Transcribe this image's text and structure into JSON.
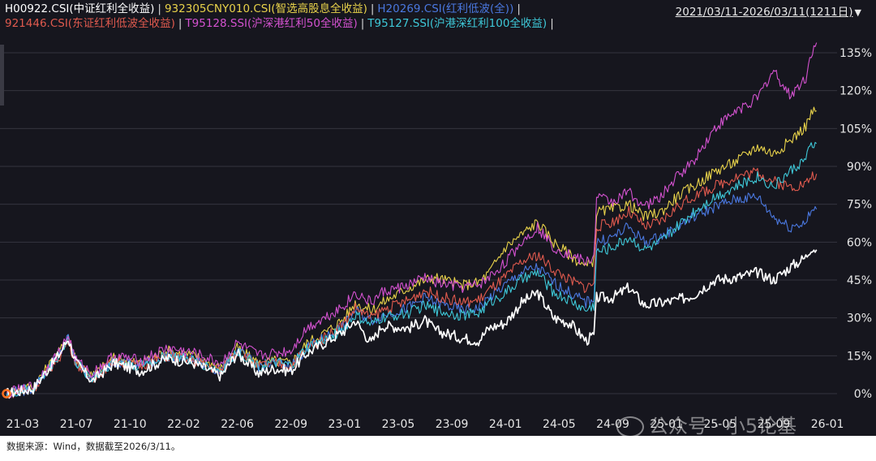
{
  "legend": [
    [
      {
        "label": "H00922.CSI(中证红利全收益)",
        "color": "#ffffff"
      },
      {
        "label": "932305CNY010.CSI(智选高股息全收益)",
        "color": "#e8d24a"
      },
      {
        "label": "H20269.CSI(红利低波(全))",
        "color": "#4a78e0"
      }
    ],
    [
      {
        "label": "921446.CSI(东证红利低波全收益)",
        "color": "#e05a4e"
      },
      {
        "label": "T95128.SSI(沪深港红利50全收益)",
        "color": "#d452d0"
      },
      {
        "label": "T95127.SSI(沪港深红利100全收益)",
        "color": "#3ec8d8"
      }
    ]
  ],
  "legend_separator": "|",
  "date_range": "2021/03/11-2026/03/11(1211日)",
  "watermark": "公众号 · 小5论基",
  "source_note": "数据来源：Wind，数据截至2026/3/11。",
  "chart_data": {
    "type": "line",
    "x_tick_labels": [
      "21-03",
      "21-07",
      "21-10",
      "22-02",
      "22-06",
      "22-09",
      "23-01",
      "23-05",
      "23-09",
      "24-01",
      "24-05",
      "24-09",
      "25-01",
      "25-05",
      "25-09",
      "26-01"
    ],
    "y_tick_labels": [
      "0%",
      "15%",
      "30%",
      "45%",
      "60%",
      "75%",
      "90%",
      "105%",
      "120%",
      "135%"
    ],
    "y_ticks": [
      0,
      15,
      30,
      45,
      60,
      75,
      90,
      105,
      120,
      135
    ],
    "ylim": [
      -4,
      142
    ],
    "xlim": [
      0,
      15.15
    ],
    "grid": true,
    "series": [
      {
        "name": "H00922.CSI(中证红利全收益)",
        "color": "#ffffff",
        "width": 1.7,
        "points": [
          [
            0,
            0
          ],
          [
            0.5,
            2
          ],
          [
            1,
            16
          ],
          [
            1.15,
            22
          ],
          [
            1.3,
            12
          ],
          [
            1.6,
            5
          ],
          [
            2,
            12
          ],
          [
            2.5,
            9
          ],
          [
            3,
            14
          ],
          [
            3.5,
            12
          ],
          [
            4,
            7
          ],
          [
            4.3,
            16
          ],
          [
            4.7,
            8
          ],
          [
            5,
            10
          ],
          [
            5.3,
            9
          ],
          [
            5.6,
            16
          ],
          [
            6,
            21
          ],
          [
            6.3,
            25
          ],
          [
            6.5,
            29
          ],
          [
            6.8,
            20
          ],
          [
            7,
            27
          ],
          [
            7.5,
            26
          ],
          [
            7.8,
            29
          ],
          [
            8,
            25
          ],
          [
            8.5,
            22
          ],
          [
            8.8,
            21
          ],
          [
            9,
            26
          ],
          [
            9.3,
            28
          ],
          [
            9.6,
            36
          ],
          [
            9.9,
            40
          ],
          [
            10.2,
            30
          ],
          [
            10.5,
            28
          ],
          [
            10.8,
            21
          ],
          [
            10.95,
            23
          ],
          [
            11,
            38
          ],
          [
            11.3,
            38
          ],
          [
            11.6,
            42
          ],
          [
            11.9,
            35
          ],
          [
            12.2,
            36
          ],
          [
            12.5,
            37
          ],
          [
            12.8,
            39
          ],
          [
            13.2,
            45
          ],
          [
            13.6,
            46
          ],
          [
            14,
            48
          ],
          [
            14.3,
            45
          ],
          [
            14.6,
            50
          ],
          [
            14.9,
            54
          ],
          [
            15,
            58
          ],
          [
            15.1,
            57
          ]
        ]
      },
      {
        "name": "932305CNY010.CSI(智选高股息全收益)",
        "color": "#e8d24a",
        "width": 1.1,
        "points": [
          [
            0,
            0
          ],
          [
            0.5,
            3
          ],
          [
            1,
            17
          ],
          [
            1.15,
            23
          ],
          [
            1.3,
            13
          ],
          [
            1.6,
            7
          ],
          [
            2,
            14
          ],
          [
            2.5,
            12
          ],
          [
            3,
            17
          ],
          [
            3.5,
            15
          ],
          [
            4,
            10
          ],
          [
            4.3,
            18
          ],
          [
            4.7,
            12
          ],
          [
            5,
            13
          ],
          [
            5.3,
            12
          ],
          [
            5.6,
            20
          ],
          [
            6,
            25
          ],
          [
            6.3,
            30
          ],
          [
            6.5,
            36
          ],
          [
            6.8,
            33
          ],
          [
            7,
            36
          ],
          [
            7.5,
            42
          ],
          [
            7.8,
            45
          ],
          [
            8,
            46
          ],
          [
            8.5,
            43
          ],
          [
            8.8,
            44
          ],
          [
            9,
            48
          ],
          [
            9.3,
            58
          ],
          [
            9.6,
            63
          ],
          [
            9.9,
            68
          ],
          [
            10.2,
            60
          ],
          [
            10.5,
            55
          ],
          [
            10.8,
            50
          ],
          [
            10.95,
            53
          ],
          [
            11,
            72
          ],
          [
            11.3,
            73
          ],
          [
            11.6,
            75
          ],
          [
            11.9,
            70
          ],
          [
            12.2,
            72
          ],
          [
            12.5,
            78
          ],
          [
            12.8,
            82
          ],
          [
            13.2,
            88
          ],
          [
            13.6,
            92
          ],
          [
            14,
            98
          ],
          [
            14.3,
            95
          ],
          [
            14.6,
            100
          ],
          [
            14.9,
            106
          ],
          [
            15,
            111
          ],
          [
            15.1,
            112
          ]
        ]
      },
      {
        "name": "H20269.CSI(红利低波(全))",
        "color": "#4a78e0",
        "width": 1.1,
        "points": [
          [
            0,
            0
          ],
          [
            0.5,
            2
          ],
          [
            1,
            16
          ],
          [
            1.15,
            22
          ],
          [
            1.3,
            12
          ],
          [
            1.6,
            6
          ],
          [
            2,
            13
          ],
          [
            2.5,
            11
          ],
          [
            3,
            15
          ],
          [
            3.5,
            13
          ],
          [
            4,
            9
          ],
          [
            4.3,
            17
          ],
          [
            4.7,
            11
          ],
          [
            5,
            12
          ],
          [
            5.3,
            11
          ],
          [
            5.6,
            18
          ],
          [
            6,
            23
          ],
          [
            6.3,
            27
          ],
          [
            6.5,
            33
          ],
          [
            6.8,
            29
          ],
          [
            7,
            31
          ],
          [
            7.5,
            34
          ],
          [
            7.8,
            38
          ],
          [
            8,
            36
          ],
          [
            8.5,
            33
          ],
          [
            8.8,
            34
          ],
          [
            9,
            38
          ],
          [
            9.3,
            43
          ],
          [
            9.6,
            48
          ],
          [
            9.9,
            50
          ],
          [
            10.2,
            44
          ],
          [
            10.5,
            40
          ],
          [
            10.8,
            36
          ],
          [
            10.95,
            38
          ],
          [
            11,
            60
          ],
          [
            11.3,
            62
          ],
          [
            11.6,
            66
          ],
          [
            11.9,
            60
          ],
          [
            12.2,
            62
          ],
          [
            12.5,
            66
          ],
          [
            12.8,
            70
          ],
          [
            13.2,
            74
          ],
          [
            13.6,
            77
          ],
          [
            14,
            78
          ],
          [
            14.3,
            70
          ],
          [
            14.6,
            66
          ],
          [
            14.9,
            68
          ],
          [
            15,
            72
          ],
          [
            15.1,
            73
          ]
        ]
      },
      {
        "name": "921446.CSI(东证红利低波全收益)",
        "color": "#e05a4e",
        "width": 1.1,
        "points": [
          [
            0,
            0
          ],
          [
            0.5,
            2
          ],
          [
            1,
            15
          ],
          [
            1.15,
            21
          ],
          [
            1.3,
            12
          ],
          [
            1.6,
            6
          ],
          [
            2,
            13
          ],
          [
            2.5,
            11
          ],
          [
            3,
            15
          ],
          [
            3.5,
            13
          ],
          [
            4,
            9
          ],
          [
            4.3,
            17
          ],
          [
            4.7,
            11
          ],
          [
            5,
            12
          ],
          [
            5.3,
            11
          ],
          [
            5.6,
            18
          ],
          [
            6,
            23
          ],
          [
            6.3,
            28
          ],
          [
            6.5,
            34
          ],
          [
            6.8,
            30
          ],
          [
            7,
            33
          ],
          [
            7.5,
            37
          ],
          [
            7.8,
            41
          ],
          [
            8,
            39
          ],
          [
            8.5,
            36
          ],
          [
            8.8,
            37
          ],
          [
            9,
            41
          ],
          [
            9.3,
            46
          ],
          [
            9.6,
            52
          ],
          [
            9.9,
            55
          ],
          [
            10.2,
            49
          ],
          [
            10.5,
            45
          ],
          [
            10.8,
            42
          ],
          [
            10.95,
            44
          ],
          [
            11,
            66
          ],
          [
            11.3,
            68
          ],
          [
            11.6,
            72
          ],
          [
            11.9,
            66
          ],
          [
            12.2,
            68
          ],
          [
            12.5,
            74
          ],
          [
            12.8,
            78
          ],
          [
            13.2,
            82
          ],
          [
            13.6,
            86
          ],
          [
            14,
            88
          ],
          [
            14.3,
            84
          ],
          [
            14.6,
            82
          ],
          [
            14.9,
            83
          ],
          [
            15,
            86
          ],
          [
            15.1,
            87
          ]
        ]
      },
      {
        "name": "T95128.SSI(沪深港红利50全收益)",
        "color": "#d452d0",
        "width": 1.1,
        "points": [
          [
            0,
            0
          ],
          [
            0.5,
            3
          ],
          [
            1,
            17
          ],
          [
            1.15,
            23
          ],
          [
            1.3,
            13
          ],
          [
            1.6,
            8
          ],
          [
            2,
            15
          ],
          [
            2.5,
            13
          ],
          [
            3,
            18
          ],
          [
            3.5,
            16
          ],
          [
            4,
            12
          ],
          [
            4.3,
            20
          ],
          [
            4.7,
            15
          ],
          [
            5,
            16
          ],
          [
            5.3,
            17
          ],
          [
            5.6,
            26
          ],
          [
            6,
            31
          ],
          [
            6.3,
            35
          ],
          [
            6.5,
            40
          ],
          [
            6.8,
            36
          ],
          [
            7,
            40
          ],
          [
            7.5,
            43
          ],
          [
            7.8,
            46
          ],
          [
            8,
            44
          ],
          [
            8.5,
            42
          ],
          [
            8.8,
            43
          ],
          [
            9,
            46
          ],
          [
            9.3,
            52
          ],
          [
            9.6,
            60
          ],
          [
            9.9,
            66
          ],
          [
            10.2,
            58
          ],
          [
            10.5,
            55
          ],
          [
            10.8,
            52
          ],
          [
            10.95,
            54
          ],
          [
            11,
            78
          ],
          [
            11.3,
            76
          ],
          [
            11.6,
            80
          ],
          [
            11.9,
            74
          ],
          [
            12.2,
            78
          ],
          [
            12.5,
            86
          ],
          [
            12.8,
            92
          ],
          [
            13.2,
            105
          ],
          [
            13.6,
            112
          ],
          [
            14,
            117
          ],
          [
            14.3,
            128
          ],
          [
            14.6,
            118
          ],
          [
            14.9,
            125
          ],
          [
            15,
            135
          ],
          [
            15.1,
            139
          ]
        ]
      },
      {
        "name": "T95127.SSI(沪港深红利100全收益)",
        "color": "#3ec8d8",
        "width": 1.1,
        "points": [
          [
            0,
            0
          ],
          [
            0.5,
            2
          ],
          [
            1,
            16
          ],
          [
            1.15,
            22
          ],
          [
            1.3,
            12
          ],
          [
            1.6,
            6
          ],
          [
            2,
            13
          ],
          [
            2.5,
            11
          ],
          [
            3,
            15
          ],
          [
            3.5,
            13
          ],
          [
            4,
            9
          ],
          [
            4.3,
            17
          ],
          [
            4.7,
            11
          ],
          [
            5,
            12
          ],
          [
            5.3,
            11
          ],
          [
            5.6,
            18
          ],
          [
            6,
            22
          ],
          [
            6.3,
            26
          ],
          [
            6.5,
            31
          ],
          [
            6.8,
            27
          ],
          [
            7,
            30
          ],
          [
            7.5,
            32
          ],
          [
            7.8,
            35
          ],
          [
            8,
            33
          ],
          [
            8.5,
            31
          ],
          [
            8.8,
            32
          ],
          [
            9,
            36
          ],
          [
            9.3,
            40
          ],
          [
            9.6,
            45
          ],
          [
            9.9,
            48
          ],
          [
            10.2,
            40
          ],
          [
            10.5,
            37
          ],
          [
            10.8,
            33
          ],
          [
            10.95,
            35
          ],
          [
            11,
            56
          ],
          [
            11.3,
            58
          ],
          [
            11.6,
            62
          ],
          [
            11.9,
            57
          ],
          [
            12.2,
            60
          ],
          [
            12.5,
            66
          ],
          [
            12.8,
            72
          ],
          [
            13.2,
            78
          ],
          [
            13.6,
            82
          ],
          [
            14,
            86
          ],
          [
            14.3,
            82
          ],
          [
            14.6,
            88
          ],
          [
            14.9,
            93
          ],
          [
            15,
            98
          ],
          [
            15.1,
            99
          ]
        ]
      }
    ],
    "start_marker_color": "#ff7020"
  }
}
